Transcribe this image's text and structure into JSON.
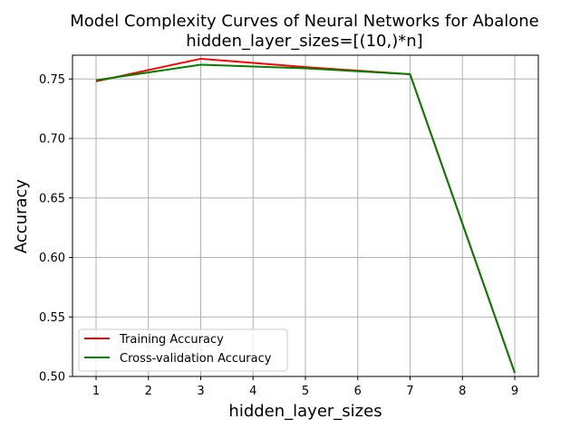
{
  "chart_data": {
    "type": "line",
    "title": "Model Complexity Curves of Neural Networks for Abalone",
    "subtitle": "hidden_layer_sizes=[(10,)*n]",
    "xlabel": "hidden_layer_sizes",
    "ylabel": "Accuracy",
    "x": [
      1,
      3,
      5,
      7,
      9
    ],
    "xlim": [
      0.55,
      9.45
    ],
    "ylim": [
      0.5,
      0.77
    ],
    "xticks": [
      1,
      2,
      3,
      4,
      5,
      6,
      7,
      8,
      9
    ],
    "yticks": [
      0.5,
      0.55,
      0.6,
      0.65,
      0.7,
      0.75
    ],
    "ytick_labels": [
      "0.50",
      "0.55",
      "0.60",
      "0.65",
      "0.70",
      "0.75"
    ],
    "grid": true,
    "legend_position": "lower-left",
    "series": [
      {
        "name": "Training Accuracy",
        "color": "#ff0000",
        "values": [
          0.748,
          0.767,
          0.76,
          0.754,
          0.503
        ]
      },
      {
        "name": "Cross-validation Accuracy",
        "color": "#008000",
        "values": [
          0.749,
          0.762,
          0.759,
          0.754,
          0.503
        ]
      }
    ]
  }
}
